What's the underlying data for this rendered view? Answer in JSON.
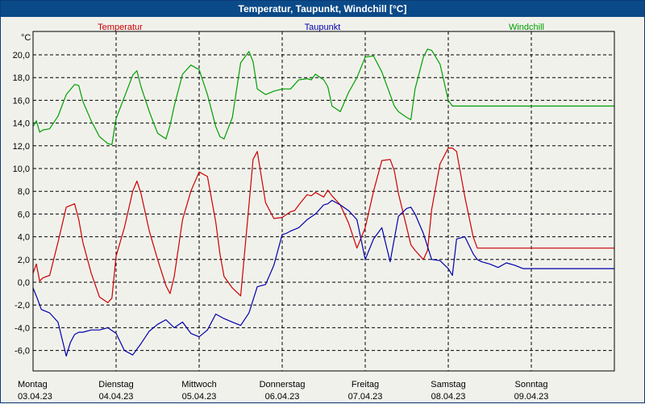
{
  "window": {
    "title": "Temperatur, Taupunkt, Windchill [°C]"
  },
  "colors": {
    "temperatur": "#cc0000",
    "taupunkt": "#0000aa",
    "windchill": "#00a000",
    "titlebar": "#0b4a88"
  },
  "chart_data": {
    "type": "line",
    "title": "Temperatur, Taupunkt, Windchill [°C]",
    "ylabel": "°C",
    "xlabel": "",
    "ylim": [
      -8,
      22
    ],
    "xlim": [
      0,
      7
    ],
    "grid": true,
    "yticks": [
      -6,
      -4,
      -2,
      0,
      2,
      4,
      6,
      8,
      10,
      12,
      14,
      16,
      18,
      20
    ],
    "ytick_labels": [
      "-6,0",
      "-4,0",
      "-2,0",
      "0,0",
      "2,0",
      "4,0",
      "6,0",
      "8,0",
      "10,0",
      "12,0",
      "14,0",
      "16,0",
      "18,0",
      "20,0"
    ],
    "xticks": [
      {
        "day": "Montag",
        "date": "03.04.23"
      },
      {
        "day": "Dienstag",
        "date": "04.04.23"
      },
      {
        "day": "Mittwoch",
        "date": "05.04.23"
      },
      {
        "day": "Donnerstag",
        "date": "06.04.23"
      },
      {
        "day": "Freitag",
        "date": "07.04.23"
      },
      {
        "day": "Samstag",
        "date": "08.04.23"
      },
      {
        "day": "Sonntag",
        "date": "09.04.23"
      }
    ],
    "x_unit": "days since 03.04.23 00:00",
    "series": [
      {
        "name": "Temperatur",
        "color": "#cc0000",
        "x": [
          0,
          0.04,
          0.08,
          0.12,
          0.2,
          0.3,
          0.4,
          0.5,
          0.55,
          0.6,
          0.7,
          0.8,
          0.9,
          0.95,
          1.0,
          1.1,
          1.2,
          1.25,
          1.3,
          1.4,
          1.5,
          1.6,
          1.65,
          1.7,
          1.8,
          1.9,
          2.0,
          2.1,
          2.2,
          2.25,
          2.3,
          2.4,
          2.5,
          2.6,
          2.65,
          2.7,
          2.8,
          2.9,
          3.0,
          3.1,
          3.15,
          3.2,
          3.3,
          3.35,
          3.4,
          3.5,
          3.55,
          3.6,
          3.7,
          3.8,
          3.9,
          4.0,
          4.1,
          4.2,
          4.3,
          4.35,
          4.4,
          4.5,
          4.55,
          4.6,
          4.7,
          4.75,
          4.8,
          4.9,
          5.0,
          5.05,
          5.1,
          5.2,
          5.3,
          5.35,
          5.4,
          5.5,
          5.6,
          5.7,
          5.75,
          5.8,
          5.9,
          6.0,
          6.1,
          6.15,
          6.2,
          6.3,
          6.35,
          6.4,
          6.5,
          6.55,
          6.6,
          6.7,
          6.8,
          6.9,
          7.0
        ],
        "values": [
          0.8,
          1.6,
          0.1,
          0.4,
          0.6,
          3.5,
          6.6,
          6.9,
          5.5,
          3.5,
          0.8,
          -1.3,
          -1.8,
          -1.4,
          2.3,
          4.8,
          8.0,
          8.9,
          7.8,
          4.5,
          2.0,
          -0.3,
          -1.0,
          0.5,
          5.5,
          8.0,
          9.7,
          9.3,
          5.3,
          2.5,
          0.5,
          -0.5,
          -1.2,
          6.8,
          10.8,
          11.5,
          7.0,
          5.6,
          5.7,
          6.2,
          6.3,
          6.8,
          7.7,
          7.6,
          7.9,
          7.5,
          8.1,
          7.6,
          6.8,
          5.2,
          3.0,
          4.8,
          8.0,
          10.7,
          10.8,
          9.8,
          7.8,
          4.8,
          3.3,
          2.8,
          2.0,
          2.8,
          6.4,
          10.4,
          11.8,
          11.8,
          11.5,
          7.5,
          4.0,
          3.0,
          3.0,
          3.0,
          3.0,
          3.0,
          3.0,
          3.0,
          3.0,
          3.0,
          3.0,
          3.0,
          3.0,
          3.0,
          3.0,
          3.0,
          3.0,
          3.0,
          3.0,
          3.0,
          3.0,
          3.0,
          3.0
        ]
      },
      {
        "name": "Taupunkt",
        "color": "#0000aa",
        "x": [
          0,
          0.05,
          0.1,
          0.2,
          0.3,
          0.4,
          0.45,
          0.5,
          0.55,
          0.6,
          0.7,
          0.8,
          0.9,
          1.0,
          1.1,
          1.2,
          1.3,
          1.4,
          1.5,
          1.6,
          1.7,
          1.8,
          1.9,
          2.0,
          2.1,
          2.2,
          2.3,
          2.4,
          2.5,
          2.6,
          2.7,
          2.8,
          2.9,
          3.0,
          3.05,
          3.1,
          3.2,
          3.3,
          3.4,
          3.5,
          3.55,
          3.6,
          3.7,
          3.8,
          3.9,
          4.0,
          4.1,
          4.2,
          4.3,
          4.4,
          4.5,
          4.55,
          4.6,
          4.7,
          4.8,
          4.9,
          5.0,
          5.05,
          5.1,
          5.2,
          5.3,
          5.35,
          5.4,
          5.5,
          5.6,
          5.7,
          5.8,
          5.9,
          6.0,
          6.1,
          6.2,
          6.3,
          6.4,
          6.5,
          6.6,
          6.7,
          6.8,
          6.9,
          7.0
        ],
        "values": [
          -0.5,
          -1.4,
          -2.4,
          -2.7,
          -3.5,
          -6.5,
          -5.3,
          -4.6,
          -4.4,
          -4.4,
          -4.2,
          -4.2,
          -4.0,
          -4.5,
          -6.0,
          -6.4,
          -5.4,
          -4.3,
          -3.7,
          -3.3,
          -4.0,
          -3.5,
          -4.5,
          -4.8,
          -4.2,
          -2.8,
          -3.2,
          -3.5,
          -3.8,
          -2.7,
          -0.4,
          -0.2,
          1.5,
          4.2,
          4.3,
          4.5,
          4.8,
          5.5,
          6.0,
          6.8,
          6.9,
          7.2,
          6.8,
          6.3,
          5.5,
          2.0,
          3.8,
          4.8,
          1.8,
          5.8,
          6.5,
          6.6,
          6.0,
          4.3,
          2.0,
          1.9,
          1.2,
          0.6,
          3.8,
          4.0,
          2.5,
          2.0,
          1.8,
          1.6,
          1.3,
          1.7,
          1.5,
          1.2,
          1.2,
          1.2,
          1.2,
          1.2,
          1.2,
          1.2,
          1.2,
          1.2,
          1.2,
          1.2,
          1.2
        ]
      },
      {
        "name": "Windchill",
        "color": "#00a000",
        "x": [
          0,
          0.04,
          0.08,
          0.12,
          0.2,
          0.3,
          0.4,
          0.5,
          0.55,
          0.6,
          0.7,
          0.8,
          0.9,
          0.95,
          1.0,
          1.1,
          1.2,
          1.25,
          1.3,
          1.4,
          1.5,
          1.6,
          1.65,
          1.7,
          1.8,
          1.9,
          2.0,
          2.1,
          2.2,
          2.25,
          2.3,
          2.4,
          2.5,
          2.6,
          2.65,
          2.7,
          2.8,
          2.9,
          3.0,
          3.1,
          3.15,
          3.2,
          3.3,
          3.35,
          3.4,
          3.5,
          3.55,
          3.6,
          3.7,
          3.8,
          3.9,
          4.0,
          4.1,
          4.2,
          4.3,
          4.35,
          4.4,
          4.5,
          4.55,
          4.6,
          4.7,
          4.75,
          4.8,
          4.9,
          5.0,
          5.05,
          5.1,
          5.2,
          5.3,
          5.35,
          5.4,
          5.5,
          5.6,
          5.7,
          5.75,
          5.8,
          5.9,
          6.0,
          6.1,
          6.15,
          6.2,
          6.3,
          6.35,
          6.4,
          6.5,
          6.55,
          6.6,
          6.7,
          6.8,
          6.9,
          7.0
        ],
        "values": [
          13.7,
          14.2,
          13.2,
          13.4,
          13.5,
          14.6,
          16.5,
          17.4,
          17.3,
          15.9,
          14.2,
          12.8,
          12.2,
          12.1,
          14.4,
          16.3,
          18.2,
          18.6,
          17.2,
          15.0,
          13.1,
          12.6,
          13.8,
          15.5,
          18.3,
          19.1,
          18.7,
          16.5,
          13.7,
          12.8,
          12.6,
          14.5,
          19.3,
          20.3,
          19.4,
          17.0,
          16.5,
          16.8,
          17.0,
          17.0,
          17.4,
          17.8,
          17.9,
          17.8,
          18.3,
          17.8,
          17.2,
          15.5,
          15.0,
          16.7,
          18.0,
          19.8,
          19.9,
          18.5,
          16.5,
          15.5,
          15.0,
          14.5,
          14.3,
          17.0,
          19.8,
          20.5,
          20.4,
          19.2,
          16.0,
          15.5,
          15.5,
          15.5,
          15.5,
          15.5,
          15.5,
          15.5,
          15.5,
          15.5,
          15.5,
          15.5,
          15.5,
          15.5,
          15.5,
          15.5,
          15.5,
          15.5,
          15.5,
          15.5,
          15.5,
          15.5,
          15.5,
          15.5,
          15.5,
          15.5,
          15.5
        ]
      }
    ]
  }
}
